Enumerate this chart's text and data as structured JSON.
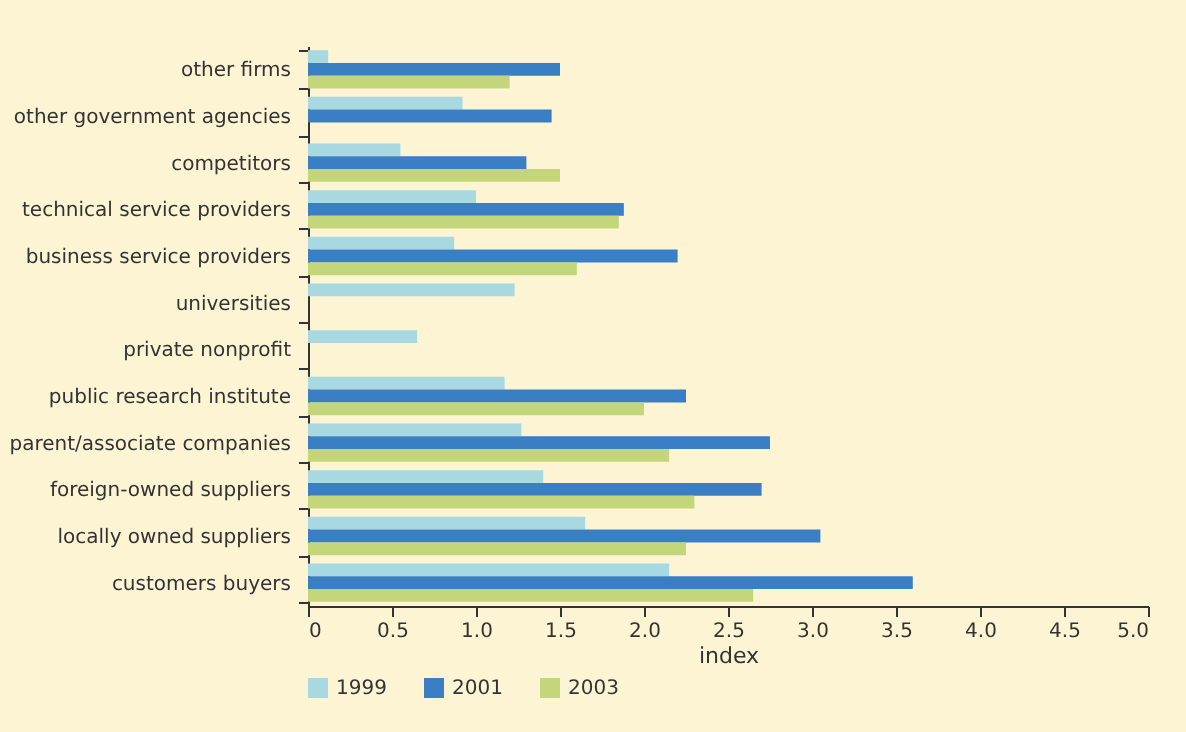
{
  "chart_data": {
    "type": "bar",
    "orientation": "horizontal",
    "xlabel": "index",
    "categories": [
      "other firms",
      "other government agencies",
      "competitors",
      "technical service providers",
      "business service providers",
      "universities",
      "private nonprofit",
      "public research institute",
      "parent/associate companies",
      "foreign-owned suppliers",
      "locally owned suppliers",
      "customers buyers"
    ],
    "series": [
      {
        "name": "1999",
        "color": "#a8d8e0",
        "values": [
          0.12,
          0.92,
          0.55,
          1.0,
          0.87,
          1.23,
          0.65,
          1.17,
          1.27,
          1.4,
          1.65,
          2.15
        ]
      },
      {
        "name": "2001",
        "color": "#3a7fc4",
        "values": [
          1.5,
          1.45,
          1.3,
          1.88,
          2.2,
          null,
          null,
          2.25,
          2.75,
          2.7,
          3.05,
          3.6
        ]
      },
      {
        "name": "2003",
        "color": "#c3d67a",
        "values": [
          1.2,
          null,
          1.5,
          1.85,
          1.6,
          null,
          null,
          2.0,
          2.15,
          2.3,
          2.25,
          2.65
        ]
      }
    ],
    "xlim": [
      0,
      5.0
    ],
    "xticks": [
      0,
      {
        "value": 0.5,
        "label": "0.5"
      },
      {
        "value": 1,
        "label": "1.0"
      },
      {
        "value": 1.5,
        "label": "1.5"
      },
      {
        "value": 2,
        "label": "2.0"
      },
      {
        "value": 2.5,
        "label": "2.5"
      },
      {
        "value": 3,
        "label": "3.0"
      },
      {
        "value": 3.5,
        "label": "3.5"
      },
      {
        "value": 4,
        "label": "4.0"
      },
      {
        "value": 4.5,
        "label": "4.5"
      },
      {
        "value": 5,
        "label": "5.0"
      }
    ],
    "grid": false,
    "legend": "bottom"
  }
}
